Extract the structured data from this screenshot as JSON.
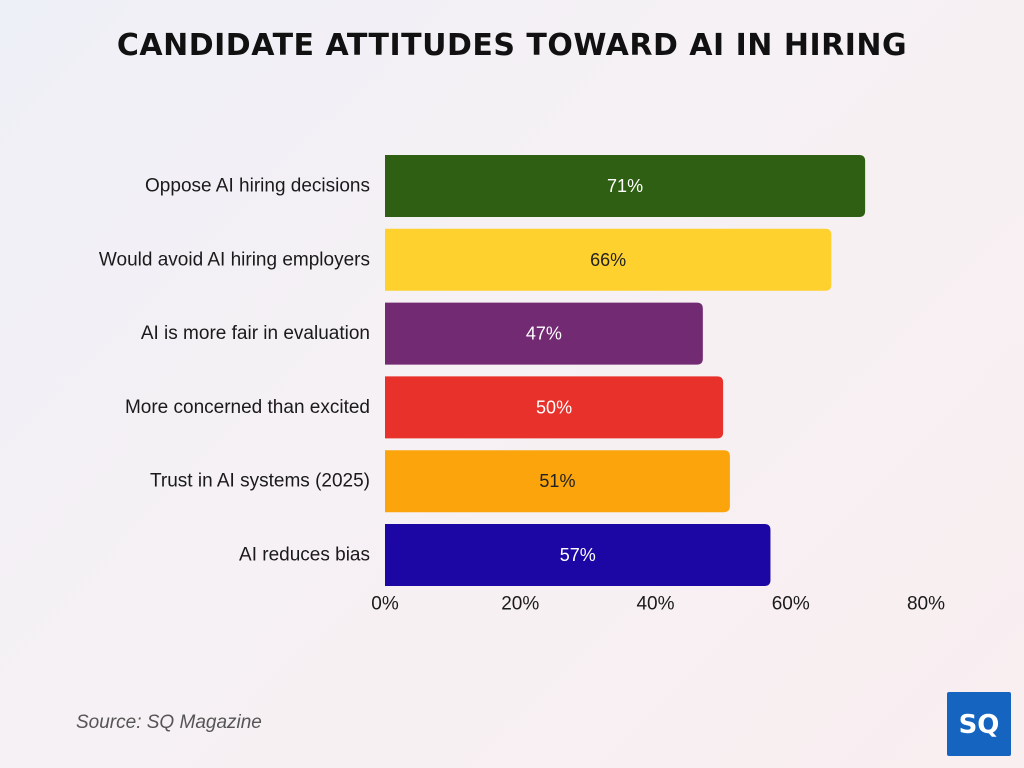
{
  "title": "CANDIDATE ATTITUDES TOWARD AI IN HIRING",
  "source": "Source: SQ Magazine",
  "logo_text": "SQ",
  "chart_data": {
    "type": "bar",
    "orientation": "horizontal",
    "categories": [
      "Oppose AI hiring decisions",
      "Would avoid AI hiring employers",
      "AI is more fair in evaluation",
      "More concerned than excited",
      "Trust in AI systems (2025)",
      "AI reduces bias"
    ],
    "values": [
      71,
      66,
      47,
      50,
      51,
      57
    ],
    "value_labels": [
      "71%",
      "66%",
      "47%",
      "50%",
      "51%",
      "57%"
    ],
    "colors": [
      "#2e5f12",
      "#ffd12f",
      "#722a72",
      "#e8312a",
      "#fba40c",
      "#1c07a5"
    ],
    "label_colors": [
      "#ffffff",
      "#222222",
      "#ffffff",
      "#ffffff",
      "#222222",
      "#ffffff"
    ],
    "x_ticks": [
      0,
      20,
      40,
      60,
      80
    ],
    "x_tick_labels": [
      "0%",
      "20%",
      "40%",
      "60%",
      "80%"
    ],
    "xlim": [
      0,
      80
    ],
    "grid": false,
    "legend": "none"
  }
}
